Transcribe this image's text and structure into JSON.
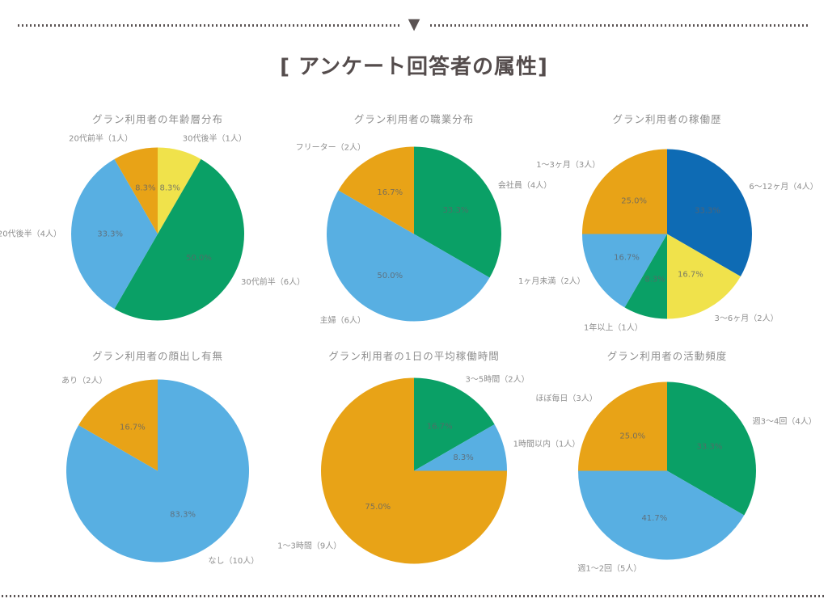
{
  "page": {
    "title": "[ アンケート回答者の属性]",
    "divider_marker": "▼"
  },
  "palette": {
    "green": "#0aa066",
    "light_blue": "#58afe2",
    "orange": "#e8a317",
    "yellow": "#f0e24b",
    "dark_blue": "#0e6bb4",
    "label_gray": "#8e8e8e",
    "heading_gray": "#544c4c"
  },
  "chart_data": [
    {
      "type": "pie",
      "title": "グラン利用者の年齢層分布",
      "total_respondents": 12,
      "start_angle_deg": 0,
      "direction": "clockwise",
      "slices": [
        {
          "label": "30代後半（1人）",
          "value": 1,
          "percent": "8.3%",
          "color": "#f0e24b"
        },
        {
          "label": "30代前半（6人）",
          "value": 6,
          "percent": "50.0%",
          "color": "#0aa066"
        },
        {
          "label": "20代後半（4人）",
          "value": 4,
          "percent": "33.3%",
          "color": "#58afe2"
        },
        {
          "label": "20代前半（1人）",
          "value": 1,
          "percent": "8.3%",
          "color": "#e8a317"
        }
      ]
    },
    {
      "type": "pie",
      "title": "グラン利用者の職業分布",
      "total_respondents": 12,
      "start_angle_deg": 0,
      "direction": "clockwise",
      "slices": [
        {
          "label": "会社員（4人）",
          "value": 4,
          "percent": "33.3%",
          "color": "#0aa066"
        },
        {
          "label": "主婦（6人）",
          "value": 6,
          "percent": "50.0%",
          "color": "#58afe2"
        },
        {
          "label": "フリーター（2人）",
          "value": 2,
          "percent": "16.7%",
          "color": "#e8a317"
        }
      ]
    },
    {
      "type": "pie",
      "title": "グラン利用者の稼働歴",
      "total_respondents": 12,
      "start_angle_deg": 0,
      "direction": "clockwise",
      "slices": [
        {
          "label": "6～12ヶ月（4人）",
          "value": 4,
          "percent": "33.3%",
          "color": "#0e6bb4"
        },
        {
          "label": "3～6ヶ月（2人）",
          "value": 2,
          "percent": "16.7%",
          "color": "#f0e24b"
        },
        {
          "label": "1年以上（1人）",
          "value": 1,
          "percent": "8.3%",
          "color": "#0aa066"
        },
        {
          "label": "1ヶ月未満（2人）",
          "value": 2,
          "percent": "16.7%",
          "color": "#58afe2"
        },
        {
          "label": "1～3ヶ月（3人）",
          "value": 3,
          "percent": "25.0%",
          "color": "#e8a317"
        }
      ]
    },
    {
      "type": "pie",
      "title": "グラン利用者の顔出し有無",
      "total_respondents": 12,
      "start_angle_deg": 0,
      "direction": "clockwise",
      "slices": [
        {
          "label": "なし（10人）",
          "value": 10,
          "percent": "83.3%",
          "color": "#58afe2"
        },
        {
          "label": "あり（2人）",
          "value": 2,
          "percent": "16.7%",
          "color": "#e8a317"
        }
      ]
    },
    {
      "type": "pie",
      "title": "グラン利用者の1日の平均稼働時間",
      "total_respondents": 12,
      "start_angle_deg": 0,
      "direction": "clockwise",
      "slices": [
        {
          "label": "3～5時間（2人）",
          "value": 2,
          "percent": "16.7%",
          "color": "#0aa066"
        },
        {
          "label": "1時間以内（1人）",
          "value": 1,
          "percent": "8.3%",
          "color": "#58afe2"
        },
        {
          "label": "1～3時間（9人）",
          "value": 9,
          "percent": "75.0%",
          "color": "#e8a317"
        }
      ]
    },
    {
      "type": "pie",
      "title": "グラン利用者の活動頻度",
      "total_respondents": 12,
      "start_angle_deg": 0,
      "direction": "clockwise",
      "slices": [
        {
          "label": "週3～4回（4人）",
          "value": 4,
          "percent": "33.3%",
          "color": "#0aa066"
        },
        {
          "label": "週1～2回（5人）",
          "value": 5,
          "percent": "41.7%",
          "color": "#58afe2"
        },
        {
          "label": "ほぼ毎日（3人）",
          "value": 3,
          "percent": "25.0%",
          "color": "#e8a317"
        }
      ]
    }
  ]
}
